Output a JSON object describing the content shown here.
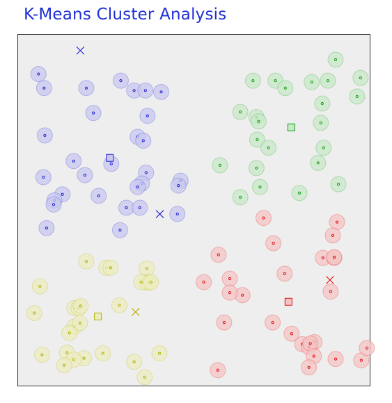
{
  "chart_data": {
    "type": "scatter",
    "title": "K-Means Cluster Analysis",
    "xlabel": "",
    "ylabel": "",
    "xlim": [
      0,
      100
    ],
    "ylim": [
      0,
      100
    ],
    "grid": false,
    "legend": "none",
    "series": [
      {
        "cluster": "blue",
        "color": "#2020d0",
        "fill": "#c8c8f0",
        "initial_centroid": [
          17.7,
          95.5
        ],
        "centroid": [
          26.1,
          64.9
        ],
        "current_centroid": [
          40.3,
          48.9
        ],
        "points": [
          [
            5.8,
            88.8
          ],
          [
            7.4,
            84.8
          ],
          [
            19.4,
            84.8
          ],
          [
            29.2,
            86.9
          ],
          [
            33.0,
            84.1
          ],
          [
            36.2,
            84.1
          ],
          [
            40.7,
            83.7
          ],
          [
            21.4,
            77.7
          ],
          [
            36.8,
            76.9
          ],
          [
            7.6,
            71.3
          ],
          [
            34.0,
            70.9
          ],
          [
            35.6,
            69.8
          ],
          [
            15.8,
            64.0
          ],
          [
            26.5,
            63.2
          ],
          [
            36.4,
            60.7
          ],
          [
            7.2,
            59.4
          ],
          [
            19.0,
            60.0
          ],
          [
            46.2,
            58.4
          ],
          [
            45.6,
            57.0
          ],
          [
            35.2,
            57.6
          ],
          [
            12.6,
            54.5
          ],
          [
            22.9,
            54.1
          ],
          [
            34.0,
            56.6
          ],
          [
            10.3,
            52.8
          ],
          [
            10.1,
            51.6
          ],
          [
            30.8,
            50.7
          ],
          [
            34.6,
            50.7
          ],
          [
            45.3,
            48.9
          ],
          [
            8.1,
            44.9
          ],
          [
            29.0,
            44.3
          ]
        ]
      },
      {
        "cluster": "green",
        "color": "#10a010",
        "fill": "#c8e8c8",
        "initial_centroid": null,
        "centroid": [
          77.7,
          73.6
        ],
        "current_centroid": null,
        "points": [
          [
            90.3,
            92.9
          ],
          [
            66.8,
            86.9
          ],
          [
            73.2,
            86.9
          ],
          [
            76.0,
            84.8
          ],
          [
            83.5,
            86.5
          ],
          [
            88.1,
            86.9
          ],
          [
            97.4,
            87.7
          ],
          [
            96.4,
            82.4
          ],
          [
            86.5,
            80.4
          ],
          [
            63.2,
            78.0
          ],
          [
            67.8,
            76.5
          ],
          [
            68.4,
            75.3
          ],
          [
            86.1,
            74.9
          ],
          [
            68.0,
            70.1
          ],
          [
            71.2,
            67.8
          ],
          [
            86.9,
            67.8
          ],
          [
            85.3,
            63.5
          ],
          [
            57.4,
            62.8
          ],
          [
            67.8,
            62.0
          ],
          [
            91.1,
            57.4
          ],
          [
            68.8,
            56.6
          ],
          [
            80.0,
            54.9
          ],
          [
            63.2,
            53.7
          ]
        ]
      },
      {
        "cluster": "red",
        "color": "#e01010",
        "fill": "#f4c4c4",
        "initial_centroid": null,
        "centroid": [
          76.9,
          23.9
        ],
        "current_centroid": [
          88.7,
          30.1
        ],
        "points": [
          [
            69.8,
            47.8
          ],
          [
            90.7,
            46.6
          ],
          [
            89.5,
            42.8
          ],
          [
            72.6,
            40.6
          ],
          [
            57.0,
            37.3
          ],
          [
            86.7,
            36.4
          ],
          [
            89.9,
            36.4
          ],
          [
            89.9,
            36.6
          ],
          [
            75.8,
            31.9
          ],
          [
            52.8,
            29.5
          ],
          [
            60.2,
            30.5
          ],
          [
            63.8,
            25.8
          ],
          [
            60.2,
            26.5
          ],
          [
            88.9,
            26.8
          ],
          [
            58.6,
            18.0
          ],
          [
            72.4,
            18.0
          ],
          [
            77.8,
            14.8
          ],
          [
            84.3,
            12.4
          ],
          [
            80.8,
            11.8
          ],
          [
            82.7,
            11.0
          ],
          [
            83.1,
            12.0
          ],
          [
            84.1,
            8.4
          ],
          [
            90.3,
            7.6
          ],
          [
            97.6,
            7.2
          ],
          [
            99.2,
            10.7
          ],
          [
            82.7,
            5.2
          ],
          [
            56.8,
            4.4
          ]
        ]
      },
      {
        "cluster": "yellow",
        "color": "#b0b000",
        "fill": "#ececc0",
        "initial_centroid": null,
        "centroid": [
          22.7,
          19.7
        ],
        "current_centroid": [
          33.4,
          21.0
        ],
        "points": [
          [
            19.4,
            35.4
          ],
          [
            25.1,
            33.6
          ],
          [
            26.3,
            33.6
          ],
          [
            36.6,
            33.4
          ],
          [
            6.2,
            28.3
          ],
          [
            36.4,
            29.5
          ],
          [
            37.0,
            29.3
          ],
          [
            35.0,
            29.5
          ],
          [
            37.8,
            29.5
          ],
          [
            16.0,
            22.1
          ],
          [
            17.2,
            22.1
          ],
          [
            17.8,
            22.7
          ],
          [
            4.6,
            20.7
          ],
          [
            28.8,
            22.9
          ],
          [
            16.0,
            16.8
          ],
          [
            17.6,
            17.8
          ],
          [
            14.6,
            15.0
          ],
          [
            24.1,
            9.2
          ],
          [
            40.2,
            9.2
          ],
          [
            13.9,
            9.4
          ],
          [
            6.8,
            8.8
          ],
          [
            18.7,
            7.8
          ],
          [
            33.0,
            6.8
          ],
          [
            15.8,
            7.4
          ],
          [
            13.1,
            5.8
          ],
          [
            36.0,
            2.4
          ]
        ]
      }
    ]
  }
}
